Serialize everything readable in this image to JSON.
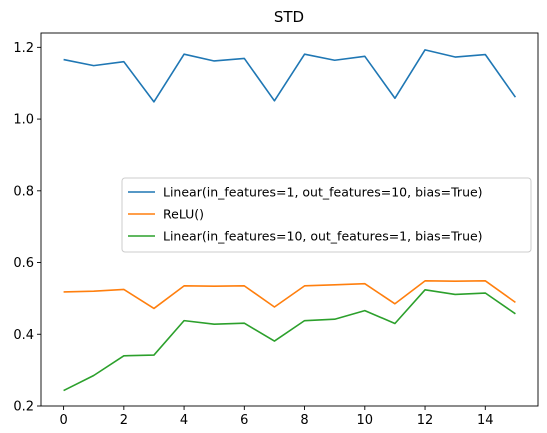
{
  "chart_data": {
    "type": "line",
    "title": "STD",
    "xlabel": "",
    "ylabel": "",
    "x": [
      0,
      1,
      2,
      3,
      4,
      5,
      6,
      7,
      8,
      9,
      10,
      11,
      12,
      13,
      14,
      15
    ],
    "xlim": [
      -0.75,
      15.75
    ],
    "ylim": [
      0.2,
      1.24
    ],
    "xticks": [
      0,
      2,
      4,
      6,
      8,
      10,
      12,
      14
    ],
    "xtick_labels": [
      "0",
      "2",
      "4",
      "6",
      "8",
      "10",
      "12",
      "14"
    ],
    "yticks": [
      0.2,
      0.4,
      0.6,
      0.8,
      1.0,
      1.2
    ],
    "ytick_labels": [
      "0.2",
      "0.4",
      "0.6",
      "0.8",
      "1.0",
      "1.2"
    ],
    "grid": false,
    "legend_position": "center-right",
    "series": [
      {
        "name": "Linear(in_features=1, out_features=10, bias=True)",
        "color": "#1f77b4",
        "values": [
          1.166,
          1.149,
          1.16,
          1.048,
          1.181,
          1.162,
          1.169,
          1.051,
          1.181,
          1.164,
          1.175,
          1.058,
          1.193,
          1.173,
          1.18,
          1.061
        ]
      },
      {
        "name": "ReLU()",
        "color": "#ff7f0e",
        "values": [
          0.518,
          0.52,
          0.525,
          0.472,
          0.535,
          0.534,
          0.535,
          0.476,
          0.535,
          0.538,
          0.541,
          0.485,
          0.549,
          0.548,
          0.549,
          0.489
        ]
      },
      {
        "name": "Linear(in_features=10, out_features=1, bias=True)",
        "color": "#2ca02c",
        "values": [
          0.243,
          0.285,
          0.34,
          0.342,
          0.438,
          0.428,
          0.431,
          0.381,
          0.438,
          0.442,
          0.466,
          0.43,
          0.524,
          0.511,
          0.515,
          0.457
        ]
      }
    ]
  }
}
